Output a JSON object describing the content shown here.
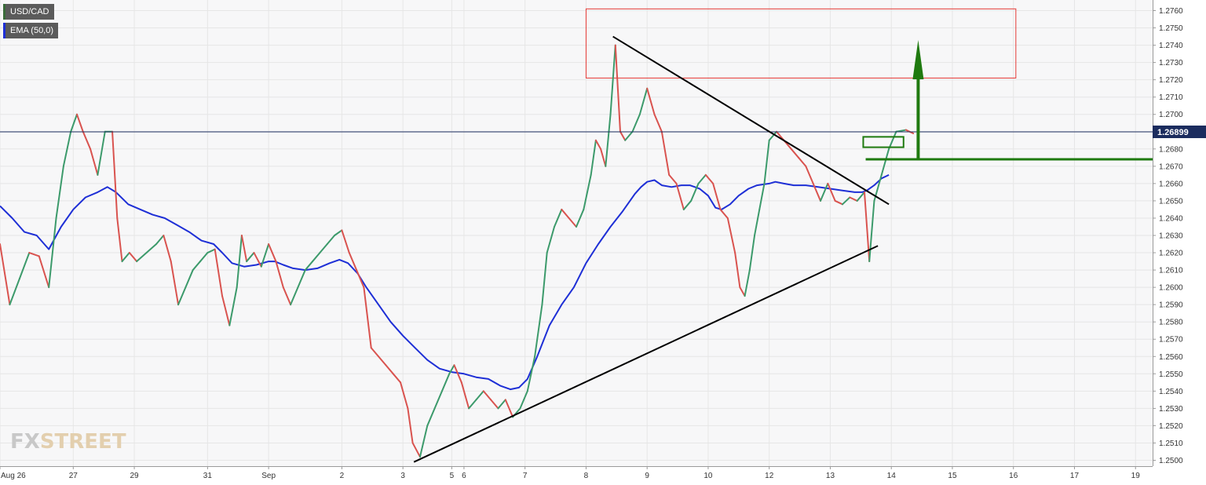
{
  "legend": {
    "pair_label": "USD/CAD",
    "ema_label": "EMA (50,0)",
    "pair_color": "#3a6b3a",
    "ema_color": "#1e2fd6"
  },
  "watermark": {
    "fx": "FX",
    "street": "STREET"
  },
  "colors": {
    "up": "#3c9a6b",
    "down": "#d9534f",
    "ema": "#1e2fd6",
    "price_line": "#1b2c5e",
    "target_zone": "#e53935",
    "arrow": "#1f7a0f",
    "trendline": "#000000",
    "grid": "#e6e6e6"
  },
  "chart_data": {
    "type": "candlestick",
    "symbol": "USD/CAD",
    "indicator": "EMA (50,0)",
    "ylim": [
      1.2497,
      1.2764
    ],
    "y_ticks": [
      "1.2760",
      "1.2750",
      "1.2740",
      "1.2730",
      "1.2720",
      "1.2710",
      "1.2700",
      "1.2690",
      "1.2680",
      "1.2670",
      "1.2660",
      "1.2650",
      "1.2640",
      "1.2630",
      "1.2620",
      "1.2610",
      "1.2600",
      "1.2590",
      "1.2580",
      "1.2570",
      "1.2560",
      "1.2550",
      "1.2540",
      "1.2530",
      "1.2520",
      "1.2510",
      "1.2500"
    ],
    "x_labels": [
      {
        "label": "Aug 26",
        "t": 0
      },
      {
        "label": "27",
        "t": 6
      },
      {
        "label": "29",
        "t": 11
      },
      {
        "label": "31",
        "t": 17
      },
      {
        "label": "Sep",
        "t": 22
      },
      {
        "label": "2",
        "t": 28
      },
      {
        "label": "3",
        "t": 33
      },
      {
        "label": "5",
        "t": 37
      },
      {
        "label": "6",
        "t": 38
      },
      {
        "label": "7",
        "t": 43
      },
      {
        "label": "8",
        "t": 48
      },
      {
        "label": "9",
        "t": 53
      },
      {
        "label": "10",
        "t": 58
      },
      {
        "label": "12",
        "t": 63
      },
      {
        "label": "13",
        "t": 68
      },
      {
        "label": "14",
        "t": 73
      },
      {
        "label": "15",
        "t": 78
      },
      {
        "label": "16",
        "t": 83
      },
      {
        "label": "17",
        "t": 88
      },
      {
        "label": "19",
        "t": 93
      }
    ],
    "x_range": [
      0,
      94.4
    ],
    "price_path": [
      [
        0.0,
        1.2625
      ],
      [
        0.8,
        1.259
      ],
      [
        1.6,
        1.2605
      ],
      [
        2.4,
        1.262
      ],
      [
        3.2,
        1.2618
      ],
      [
        4.0,
        1.26
      ],
      [
        4.6,
        1.264
      ],
      [
        5.2,
        1.267
      ],
      [
        5.8,
        1.269
      ],
      [
        6.3,
        1.27
      ],
      [
        6.8,
        1.269
      ],
      [
        7.4,
        1.268
      ],
      [
        8.0,
        1.2665
      ],
      [
        8.6,
        1.269
      ],
      [
        9.2,
        1.269
      ],
      [
        9.6,
        1.264
      ],
      [
        10.0,
        1.2615
      ],
      [
        10.6,
        1.262
      ],
      [
        11.2,
        1.2615
      ],
      [
        12.0,
        1.262
      ],
      [
        12.8,
        1.2625
      ],
      [
        13.4,
        1.263
      ],
      [
        14.0,
        1.2615
      ],
      [
        14.6,
        1.259
      ],
      [
        15.2,
        1.26
      ],
      [
        15.8,
        1.261
      ],
      [
        16.4,
        1.2615
      ],
      [
        17.0,
        1.262
      ],
      [
        17.6,
        1.2622
      ],
      [
        18.2,
        1.2595
      ],
      [
        18.8,
        1.2578
      ],
      [
        19.4,
        1.26
      ],
      [
        19.8,
        1.263
      ],
      [
        20.2,
        1.2615
      ],
      [
        20.8,
        1.262
      ],
      [
        21.4,
        1.2612
      ],
      [
        22.0,
        1.2625
      ],
      [
        22.6,
        1.2615
      ],
      [
        23.2,
        1.26
      ],
      [
        23.8,
        1.259
      ],
      [
        24.4,
        1.26
      ],
      [
        25.0,
        1.261
      ],
      [
        25.6,
        1.2615
      ],
      [
        26.2,
        1.262
      ],
      [
        26.8,
        1.2625
      ],
      [
        27.4,
        1.263
      ],
      [
        28.0,
        1.2633
      ],
      [
        28.6,
        1.262
      ],
      [
        29.2,
        1.261
      ],
      [
        29.8,
        1.26
      ],
      [
        30.4,
        1.2565
      ],
      [
        31.0,
        1.256
      ],
      [
        31.6,
        1.2555
      ],
      [
        32.2,
        1.255
      ],
      [
        32.8,
        1.2545
      ],
      [
        33.4,
        1.253
      ],
      [
        33.8,
        1.251
      ],
      [
        34.4,
        1.2502
      ],
      [
        35.0,
        1.252
      ],
      [
        35.6,
        1.253
      ],
      [
        36.2,
        1.254
      ],
      [
        36.8,
        1.255
      ],
      [
        37.2,
        1.2555
      ],
      [
        37.8,
        1.2545
      ],
      [
        38.4,
        1.253
      ],
      [
        39.0,
        1.2535
      ],
      [
        39.6,
        1.254
      ],
      [
        40.2,
        1.2535
      ],
      [
        40.8,
        1.253
      ],
      [
        41.4,
        1.2535
      ],
      [
        42.0,
        1.2525
      ],
      [
        42.6,
        1.253
      ],
      [
        43.2,
        1.254
      ],
      [
        43.8,
        1.256
      ],
      [
        44.4,
        1.259
      ],
      [
        44.8,
        1.262
      ],
      [
        45.4,
        1.2635
      ],
      [
        46.0,
        1.2645
      ],
      [
        46.6,
        1.264
      ],
      [
        47.2,
        1.2635
      ],
      [
        47.8,
        1.2645
      ],
      [
        48.4,
        1.2665
      ],
      [
        48.8,
        1.2685
      ],
      [
        49.2,
        1.268
      ],
      [
        49.6,
        1.267
      ],
      [
        50.0,
        1.27
      ],
      [
        50.4,
        1.274
      ],
      [
        50.8,
        1.269
      ],
      [
        51.2,
        1.2685
      ],
      [
        51.8,
        1.269
      ],
      [
        52.4,
        1.27
      ],
      [
        53.0,
        1.2715
      ],
      [
        53.6,
        1.27
      ],
      [
        54.2,
        1.269
      ],
      [
        54.8,
        1.2665
      ],
      [
        55.4,
        1.266
      ],
      [
        56.0,
        1.2645
      ],
      [
        56.6,
        1.265
      ],
      [
        57.2,
        1.266
      ],
      [
        57.8,
        1.2665
      ],
      [
        58.4,
        1.266
      ],
      [
        59.0,
        1.2645
      ],
      [
        59.6,
        1.264
      ],
      [
        60.2,
        1.262
      ],
      [
        60.6,
        1.26
      ],
      [
        61.0,
        1.2595
      ],
      [
        61.4,
        1.261
      ],
      [
        61.8,
        1.263
      ],
      [
        62.2,
        1.2645
      ],
      [
        62.6,
        1.266
      ],
      [
        63.0,
        1.2685
      ],
      [
        63.6,
        1.269
      ],
      [
        64.2,
        1.2685
      ],
      [
        64.8,
        1.268
      ],
      [
        65.4,
        1.2675
      ],
      [
        66.0,
        1.267
      ],
      [
        66.6,
        1.266
      ],
      [
        67.2,
        1.265
      ],
      [
        67.8,
        1.266
      ],
      [
        68.4,
        1.265
      ],
      [
        69.0,
        1.2648
      ],
      [
        69.6,
        1.2652
      ],
      [
        70.2,
        1.265
      ],
      [
        70.8,
        1.2655
      ],
      [
        71.2,
        1.2615
      ],
      [
        71.6,
        1.265
      ],
      [
        72.2,
        1.2665
      ],
      [
        72.8,
        1.268
      ],
      [
        73.4,
        1.269
      ],
      [
        74.2,
        1.2691
      ],
      [
        74.8,
        1.2689
      ]
    ],
    "ema_path": [
      [
        0.0,
        1.2647
      ],
      [
        1.0,
        1.264
      ],
      [
        2.0,
        1.2632
      ],
      [
        3.0,
        1.263
      ],
      [
        4.0,
        1.2622
      ],
      [
        5.0,
        1.2635
      ],
      [
        6.0,
        1.2645
      ],
      [
        7.0,
        1.2652
      ],
      [
        8.0,
        1.2655
      ],
      [
        8.8,
        1.2658
      ],
      [
        9.5,
        1.2655
      ],
      [
        10.5,
        1.2648
      ],
      [
        11.5,
        1.2645
      ],
      [
        12.5,
        1.2642
      ],
      [
        13.5,
        1.264
      ],
      [
        14.5,
        1.2636
      ],
      [
        15.5,
        1.2632
      ],
      [
        16.5,
        1.2627
      ],
      [
        17.5,
        1.2625
      ],
      [
        18.2,
        1.262
      ],
      [
        19.0,
        1.2614
      ],
      [
        20.0,
        1.2612
      ],
      [
        21.0,
        1.2613
      ],
      [
        22.0,
        1.2615
      ],
      [
        22.5,
        1.2615
      ],
      [
        23.2,
        1.2613
      ],
      [
        24.0,
        1.2611
      ],
      [
        25.0,
        1.261
      ],
      [
        26.0,
        1.2611
      ],
      [
        27.0,
        1.2614
      ],
      [
        27.8,
        1.2616
      ],
      [
        28.5,
        1.2614
      ],
      [
        29.3,
        1.2608
      ],
      [
        30.0,
        1.26
      ],
      [
        31.0,
        1.259
      ],
      [
        32.0,
        1.258
      ],
      [
        33.0,
        1.2572
      ],
      [
        34.0,
        1.2565
      ],
      [
        35.0,
        1.2558
      ],
      [
        36.0,
        1.2553
      ],
      [
        37.0,
        1.2551
      ],
      [
        38.0,
        1.255
      ],
      [
        39.0,
        1.2548
      ],
      [
        40.0,
        1.2547
      ],
      [
        41.0,
        1.2543
      ],
      [
        41.8,
        1.2541
      ],
      [
        42.5,
        1.2542
      ],
      [
        43.2,
        1.2547
      ],
      [
        44.0,
        1.256
      ],
      [
        45.0,
        1.2578
      ],
      [
        46.0,
        1.259
      ],
      [
        47.0,
        1.26
      ],
      [
        48.0,
        1.2614
      ],
      [
        49.0,
        1.2625
      ],
      [
        50.0,
        1.2635
      ],
      [
        51.0,
        1.2644
      ],
      [
        52.0,
        1.2654
      ],
      [
        52.5,
        1.2658
      ],
      [
        53.0,
        1.2661
      ],
      [
        53.6,
        1.2662
      ],
      [
        54.2,
        1.2659
      ],
      [
        55.0,
        1.2658
      ],
      [
        55.8,
        1.2659
      ],
      [
        56.5,
        1.2659
      ],
      [
        57.3,
        1.2657
      ],
      [
        58.0,
        1.2653
      ],
      [
        58.6,
        1.2646
      ],
      [
        59.1,
        1.2645
      ],
      [
        59.8,
        1.2648
      ],
      [
        60.5,
        1.2653
      ],
      [
        61.3,
        1.2657
      ],
      [
        62.0,
        1.2659
      ],
      [
        63.0,
        1.266
      ],
      [
        63.5,
        1.2661
      ],
      [
        64.2,
        1.266
      ],
      [
        65.0,
        1.2659
      ],
      [
        66.0,
        1.2659
      ],
      [
        67.0,
        1.2658
      ],
      [
        68.0,
        1.2657
      ],
      [
        69.0,
        1.2656
      ],
      [
        70.0,
        1.2655
      ],
      [
        70.6,
        1.2655
      ],
      [
        71.0,
        1.2656
      ],
      [
        71.6,
        1.2659
      ],
      [
        72.2,
        1.2663
      ],
      [
        72.8,
        1.2665
      ]
    ],
    "current_price": {
      "value": 1.26899,
      "label": "1.26899"
    },
    "drawings": {
      "descending_trendline": {
        "from": [
          50.2,
          1.2745
        ],
        "to": [
          72.8,
          1.2648
        ]
      },
      "ascending_trendline": {
        "from": [
          33.9,
          1.2499
        ],
        "to": [
          71.9,
          1.2624
        ]
      },
      "target_zone": {
        "x": [
          48.0,
          83.2
        ],
        "y": [
          1.2721,
          1.2761
        ]
      },
      "breakout_box": {
        "x": [
          70.7,
          74.0
        ],
        "y": [
          1.2681,
          1.2687
        ]
      },
      "support_line": {
        "x": [
          70.9,
          94.4
        ],
        "y": 1.2674
      },
      "arrow": {
        "x": 75.2,
        "from": 1.2674,
        "to": 1.2743
      }
    }
  }
}
